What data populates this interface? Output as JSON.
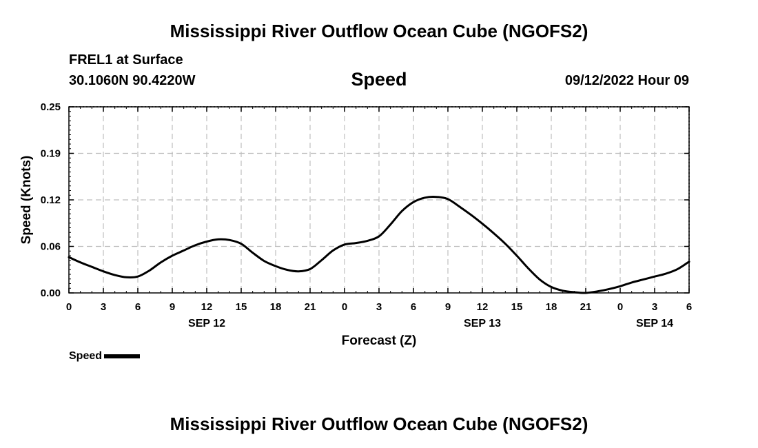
{
  "header": {
    "title": "Mississippi River Outflow Ocean Cube (NGOFS2)",
    "station": "FREL1 at Surface",
    "coords": "30.1060N  90.4220W",
    "variable": "Speed",
    "datetime": "09/12/2022 Hour 09"
  },
  "footer": {
    "title": "Mississippi River Outflow Ocean Cube (NGOFS2)"
  },
  "chart_data": {
    "type": "line",
    "title": "Speed",
    "xlabel": "Forecast (Z)",
    "ylabel": "Speed (Knots)",
    "xlim": [
      0,
      54
    ],
    "ylim": [
      0,
      0.25
    ],
    "grid": true,
    "x_ticks": [
      0,
      3,
      6,
      9,
      12,
      15,
      18,
      21,
      24,
      27,
      30,
      33,
      36,
      39,
      42,
      45,
      48,
      51,
      54
    ],
    "x_tick_labels": [
      "0",
      "3",
      "6",
      "9",
      "12",
      "15",
      "18",
      "21",
      "0",
      "3",
      "6",
      "9",
      "12",
      "15",
      "18",
      "21",
      "0",
      "3",
      "6"
    ],
    "y_ticks": [
      0,
      0.0625,
      0.125,
      0.1875,
      0.25
    ],
    "y_tick_labels": [
      "0.00",
      "0.06",
      "0.12",
      "0.19",
      "0.25"
    ],
    "day_labels": [
      {
        "x": 12,
        "label": "SEP 12"
      },
      {
        "x": 36,
        "label": "SEP 13"
      },
      {
        "x": 51,
        "label": "SEP 14"
      }
    ],
    "legend": {
      "position": "bottom-left",
      "entries": [
        "Speed"
      ]
    },
    "series": [
      {
        "name": "Speed",
        "x": [
          0,
          1,
          2,
          3,
          4,
          5,
          6,
          7,
          8,
          9,
          10,
          11,
          12,
          13,
          14,
          15,
          16,
          17,
          18,
          19,
          20,
          21,
          22,
          23,
          24,
          25,
          26,
          27,
          28,
          29,
          30,
          31,
          32,
          33,
          34,
          35,
          36,
          37,
          38,
          39,
          40,
          41,
          42,
          43,
          44,
          45,
          46,
          47,
          48,
          49,
          50,
          51,
          52,
          53,
          54
        ],
        "values": [
          0.048,
          0.041,
          0.035,
          0.029,
          0.024,
          0.021,
          0.022,
          0.03,
          0.041,
          0.05,
          0.057,
          0.064,
          0.069,
          0.072,
          0.071,
          0.066,
          0.054,
          0.043,
          0.036,
          0.031,
          0.029,
          0.032,
          0.044,
          0.057,
          0.065,
          0.067,
          0.07,
          0.076,
          0.092,
          0.11,
          0.122,
          0.128,
          0.129,
          0.126,
          0.116,
          0.105,
          0.093,
          0.08,
          0.066,
          0.05,
          0.033,
          0.018,
          0.008,
          0.003,
          0.001,
          0.0,
          0.002,
          0.005,
          0.009,
          0.014,
          0.018,
          0.022,
          0.026,
          0.032,
          0.042
        ]
      }
    ]
  }
}
